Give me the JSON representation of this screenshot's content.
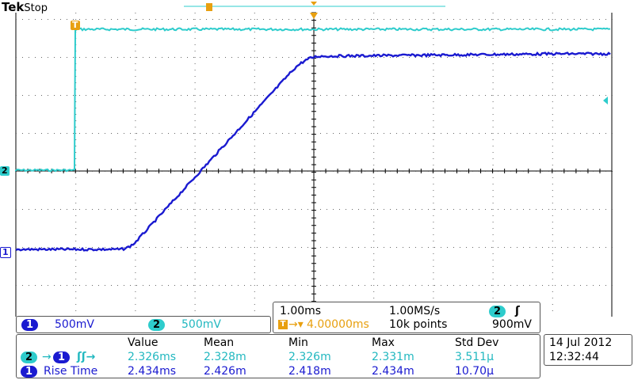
{
  "header": {
    "brand": "Tek",
    "status": "Stop"
  },
  "markers": {
    "ch1": "1",
    "ch2": "2",
    "trigger": "T"
  },
  "channels": [
    {
      "id": "1",
      "scale": "500mV",
      "color": "#1a1ad0"
    },
    {
      "id": "2",
      "scale": "500mV",
      "color": "#2ecccc"
    }
  ],
  "timebase": {
    "time_div": "1.00ms",
    "sample_rate": "1.00MS/s",
    "trigger_source": "2",
    "trigger_slope": "ʃ",
    "trigger_position": "4.00000ms",
    "record_length": "10k points",
    "trigger_level": "900mV"
  },
  "measurements": {
    "headers": [
      "Value",
      "Mean",
      "Min",
      "Max",
      "Std Dev"
    ],
    "rows": [
      {
        "src": "2",
        "dst": "1",
        "label": "ʃʃ→",
        "values": [
          "2.326ms",
          "2.328m",
          "2.326m",
          "2.331m",
          "3.511µ"
        ]
      },
      {
        "src": "1",
        "label": "Rise Time",
        "values": [
          "2.434ms",
          "2.426m",
          "2.418m",
          "2.434m",
          "10.70µ"
        ]
      }
    ]
  },
  "datetime": {
    "date": "14 Jul  2012",
    "time": "12:32:44"
  },
  "colors": {
    "ch1": "#1a1ad0",
    "ch2": "#2ecccc",
    "trigger": "#e8a010",
    "grid": "#000000"
  }
}
